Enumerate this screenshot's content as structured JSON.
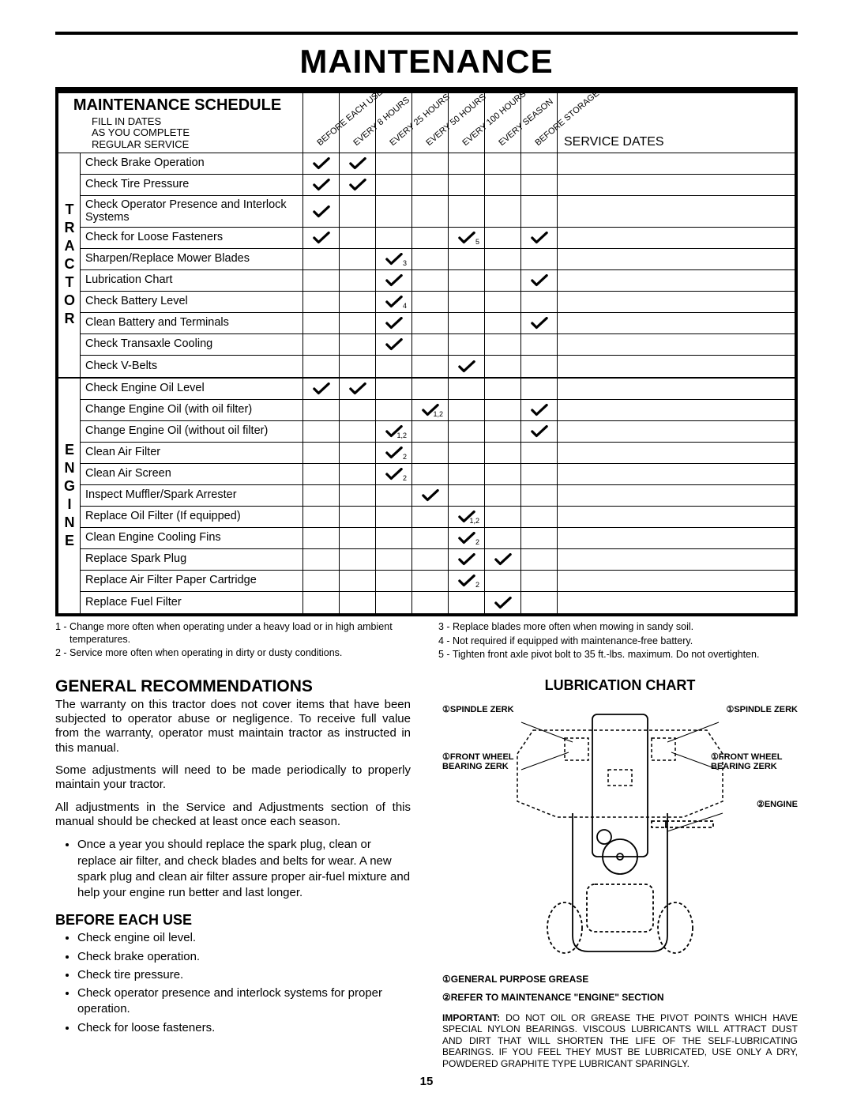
{
  "page_title": "MAINTENANCE",
  "schedule": {
    "title": "MAINTENANCE SCHEDULE",
    "subtitle_lines": [
      "FILL IN DATES",
      "AS YOU COMPLETE",
      "REGULAR SERVICE"
    ],
    "service_dates_label": "SERVICE DATES",
    "intervals": [
      "BEFORE EACH USE",
      "EVERY 8 HOURS",
      "EVERY 25 HOURS",
      "EVERY 50 HOURS",
      "EVERY 100 HOURS",
      "EVERY SEASON",
      "BEFORE STORAGE"
    ],
    "groups": [
      {
        "label": "TRACTOR",
        "rows": [
          {
            "label": "Check Brake Operation",
            "checks": [
              true,
              true,
              false,
              false,
              false,
              false,
              false
            ],
            "subs": {}
          },
          {
            "label": "Check Tire Pressure",
            "checks": [
              true,
              true,
              false,
              false,
              false,
              false,
              false
            ],
            "subs": {}
          },
          {
            "label": "Check Operator Presence and Interlock Systems",
            "checks": [
              true,
              false,
              false,
              false,
              false,
              false,
              false
            ],
            "subs": {},
            "tall": true
          },
          {
            "label": "Check for Loose Fasteners",
            "checks": [
              true,
              false,
              false,
              false,
              true,
              false,
              true
            ],
            "subs": {
              "4": "5"
            }
          },
          {
            "label": "Sharpen/Replace Mower Blades",
            "checks": [
              false,
              false,
              true,
              false,
              false,
              false,
              false
            ],
            "subs": {
              "2": "3"
            }
          },
          {
            "label": "Lubrication Chart",
            "checks": [
              false,
              false,
              true,
              false,
              false,
              false,
              true
            ],
            "subs": {}
          },
          {
            "label": "Check Battery Level",
            "checks": [
              false,
              false,
              true,
              false,
              false,
              false,
              false
            ],
            "subs": {
              "2": "4"
            }
          },
          {
            "label": "Clean Battery and Terminals",
            "checks": [
              false,
              false,
              true,
              false,
              false,
              false,
              true
            ],
            "subs": {}
          },
          {
            "label": "Check Transaxle Cooling",
            "checks": [
              false,
              false,
              true,
              false,
              false,
              false,
              false
            ],
            "subs": {}
          },
          {
            "label": "Check V-Belts",
            "checks": [
              false,
              false,
              false,
              false,
              true,
              false,
              false
            ],
            "subs": {}
          }
        ]
      },
      {
        "label": "ENGINE",
        "rows": [
          {
            "label": "Check Engine Oil Level",
            "checks": [
              true,
              true,
              false,
              false,
              false,
              false,
              false
            ],
            "subs": {}
          },
          {
            "label": "Change Engine Oil (with oil filter)",
            "checks": [
              false,
              false,
              false,
              true,
              false,
              false,
              true
            ],
            "subs": {
              "3": "1,2"
            }
          },
          {
            "label": "Change Engine Oil (without oil filter)",
            "checks": [
              false,
              false,
              true,
              false,
              false,
              false,
              true
            ],
            "subs": {
              "2": "1,2"
            }
          },
          {
            "label": "Clean Air Filter",
            "checks": [
              false,
              false,
              true,
              false,
              false,
              false,
              false
            ],
            "subs": {
              "2": "2"
            }
          },
          {
            "label": "Clean Air Screen",
            "checks": [
              false,
              false,
              true,
              false,
              false,
              false,
              false
            ],
            "subs": {
              "2": "2"
            }
          },
          {
            "label": "Inspect Muffler/Spark Arrester",
            "checks": [
              false,
              false,
              false,
              true,
              false,
              false,
              false
            ],
            "subs": {}
          },
          {
            "label": "Replace Oil Filter (If equipped)",
            "checks": [
              false,
              false,
              false,
              false,
              true,
              false,
              false
            ],
            "subs": {
              "4": "1,2"
            }
          },
          {
            "label": "Clean Engine Cooling Fins",
            "checks": [
              false,
              false,
              false,
              false,
              true,
              false,
              false
            ],
            "subs": {
              "4": "2"
            }
          },
          {
            "label": "Replace Spark Plug",
            "checks": [
              false,
              false,
              false,
              false,
              true,
              true,
              false
            ],
            "subs": {}
          },
          {
            "label": "Replace Air Filter Paper Cartridge",
            "checks": [
              false,
              false,
              false,
              false,
              true,
              false,
              false
            ],
            "subs": {
              "4": "2"
            }
          },
          {
            "label": "Replace Fuel Filter",
            "checks": [
              false,
              false,
              false,
              false,
              false,
              true,
              false
            ],
            "subs": {}
          }
        ]
      }
    ],
    "footnotes_left": [
      "1 - Change more often when operating under a heavy load or in high ambient temperatures.",
      "2 - Service more often when operating in dirty or dusty conditions."
    ],
    "footnotes_right": [
      "3 - Replace blades more often when mowing in sandy soil.",
      "4 - Not required if equipped with maintenance-free battery.",
      "5 - Tighten front axle pivot bolt to 35 ft.-lbs. maximum. Do not overtighten."
    ]
  },
  "recommendations": {
    "title": "GENERAL RECOMMENDATIONS",
    "paras": [
      "The warranty on this tractor does not cover items that have been subjected to operator abuse or negligence. To receive full value from the warranty, operator must maintain tractor as instructed in this manual.",
      "Some adjustments will need to be made periodically to properly maintain your tractor.",
      "All adjustments in the Service and Adjustments section of this manual should be checked at least once each season."
    ],
    "bullet_main": "Once a year you should replace the spark plug, clean or replace air filter, and check blades and belts for wear. A new spark plug and clean air filter assure proper air-fuel mixture and help your engine run better and last longer.",
    "before_title": "BEFORE EACH USE",
    "before_items": [
      "Check engine oil level.",
      "Check brake operation.",
      "Check tire pressure.",
      "Check operator presence and interlock systems for proper operation.",
      "Check for loose fasteners."
    ]
  },
  "lubrication": {
    "title": "LUBRICATION CHART",
    "labels": {
      "spindle_left": "①SPINDLE ZERK",
      "spindle_right": "①SPINDLE ZERK",
      "front_left": "①FRONT WHEEL BEARING  ZERK",
      "front_right": "①FRONT WHEEL BEARING  ZERK",
      "engine": "②ENGINE"
    },
    "legend1": "①GENERAL PURPOSE GREASE",
    "legend2": "②REFER TO MAINTENANCE  \"ENGINE\" SECTION",
    "important": "IMPORTANT:  DO NOT OIL OR GREASE THE PIVOT POINTS WHICH HAVE SPECIAL NYLON BEARINGS.  VISCOUS LUBRICANTS WILL ATTRACT DUST AND DIRT THAT WILL SHORTEN THE LIFE OF THE SELF-LUBRICATING BEARINGS.  IF YOU FEEL THEY MUST BE LUBRICATED, USE ONLY A DRY, POWDERED GRAPHITE TYPE LUBRICANT SPARINGLY."
  },
  "page_number": "15",
  "colors": {
    "black": "#000000",
    "white": "#ffffff"
  }
}
